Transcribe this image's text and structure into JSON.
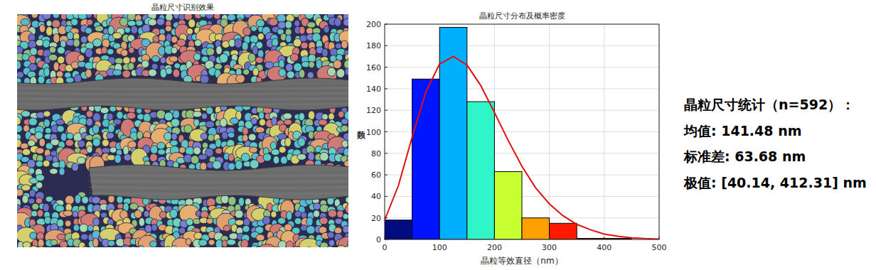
{
  "image_panel": {
    "title": "晶粒尺寸识别效果"
  },
  "chart_data": {
    "type": "histogram",
    "title": "晶粒尺寸分布及概率密度",
    "x_label": "晶粒等效直径（nm）",
    "y_label": "频数",
    "bins": [
      0,
      50,
      100,
      150,
      200,
      250,
      300,
      350,
      400,
      450
    ],
    "values": [
      18,
      149,
      197,
      128,
      63,
      20,
      15,
      1,
      1
    ],
    "colors": [
      "#000c80",
      "#0014ff",
      "#00b0ff",
      "#30f5c8",
      "#c8ff30",
      "#ffa000",
      "#ff1a00",
      "#c00000",
      "#800000"
    ],
    "series": [
      {
        "type": "line",
        "color": "#e01010",
        "x": [
          0,
          25,
          50,
          75,
          100,
          125,
          150,
          175,
          200,
          225,
          250,
          275,
          300,
          325,
          350,
          375,
          400,
          425,
          450,
          475,
          500
        ],
        "values": [
          18,
          50,
          95,
          137,
          163,
          170,
          162,
          143,
          118,
          92,
          68,
          48,
          33,
          22,
          14,
          9,
          5,
          3,
          1.5,
          0.8,
          0.4
        ]
      }
    ],
    "xlim": [
      0,
      500
    ],
    "xticks": [
      0,
      100,
      200,
      300,
      400,
      500
    ],
    "ylim": [
      0,
      200
    ],
    "yticks": [
      0,
      20,
      40,
      60,
      80,
      100,
      120,
      140,
      160,
      180,
      200
    ],
    "grid": true
  },
  "stats": {
    "lines": [
      "晶粒尺寸统计（n=592）：",
      "均值: 141.48 nm",
      "标准差: 63.68 nm",
      "极值: [40.14, 412.31] nm"
    ]
  }
}
